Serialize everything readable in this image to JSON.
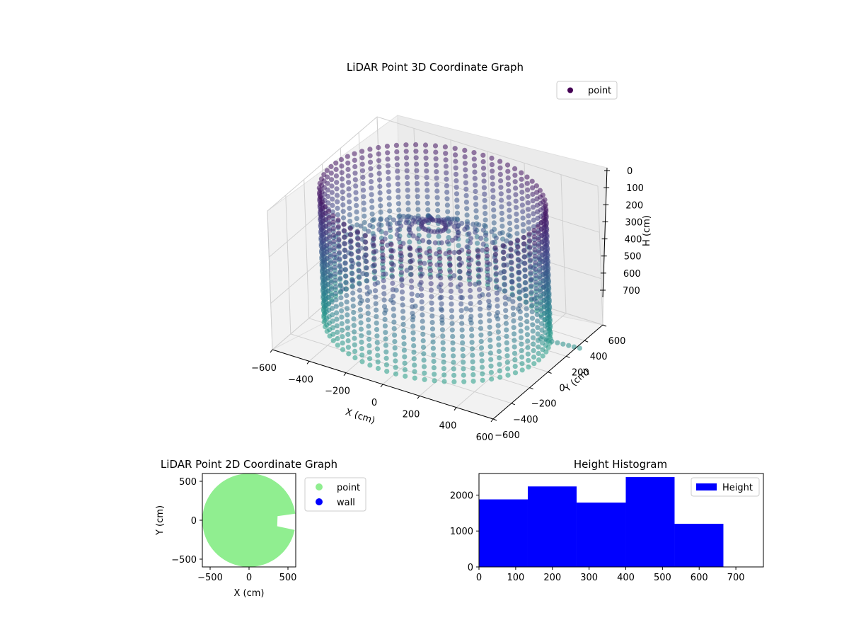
{
  "chart_data": [
    {
      "type": "scatter3d",
      "title": "LiDAR Point 3D Coordinate Graph",
      "xlabel": "X (cm)",
      "ylabel": "Y (cm)",
      "zlabel": "H (cm)",
      "xlim": [
        -600,
        600
      ],
      "ylim": [
        -600,
        600
      ],
      "zlim": [
        0,
        750
      ],
      "z_inverted": true,
      "x_ticks": [
        "−600",
        "−400",
        "−200",
        "0",
        "200",
        "400",
        "600"
      ],
      "y_ticks": [
        "−600",
        "−400",
        "−200",
        "0",
        "200",
        "400",
        "600"
      ],
      "z_ticks": [
        "0",
        "100",
        "200",
        "300",
        "400",
        "500",
        "600",
        "700"
      ],
      "legend": {
        "placement": "top-right",
        "entries": [
          {
            "name": "point",
            "color": "#440154"
          }
        ]
      },
      "colormap": "viridis",
      "wall_radius": 600,
      "wall_columns": 72,
      "height_max": 700,
      "grid": true
    },
    {
      "type": "scatter",
      "title": "LiDAR Point 2D Coordinate Graph",
      "xlabel": "X (cm)",
      "ylabel": "Y (cm)",
      "xlim": [
        -600,
        600
      ],
      "ylim": [
        -600,
        600
      ],
      "x_ticks": [
        "−500",
        "0",
        "500"
      ],
      "y_ticks": [
        "−500",
        "0",
        "500"
      ],
      "radius": 600,
      "notch": {
        "from_angle_deg": -12,
        "to_angle_deg": 8,
        "depth": 230
      },
      "series": [
        {
          "name": "point",
          "color": "#90ee90"
        },
        {
          "name": "wall",
          "color": "#0000ff"
        }
      ],
      "legend": {
        "placement": "outside-right"
      }
    },
    {
      "type": "bar",
      "title": "Height Histogram",
      "bin_edges": [
        0,
        133,
        266,
        400,
        533,
        666
      ],
      "values": [
        1880,
        2240,
        1790,
        2500,
        1200
      ],
      "xlim": [
        0,
        775
      ],
      "ylim": [
        0,
        2600
      ],
      "x_ticks": [
        0,
        100,
        200,
        300,
        400,
        500,
        600,
        700
      ],
      "y_ticks": [
        0,
        1000,
        2000
      ],
      "series": [
        {
          "name": "Height",
          "color": "#0000ff"
        }
      ],
      "legend": {
        "placement": "top-right"
      }
    }
  ]
}
